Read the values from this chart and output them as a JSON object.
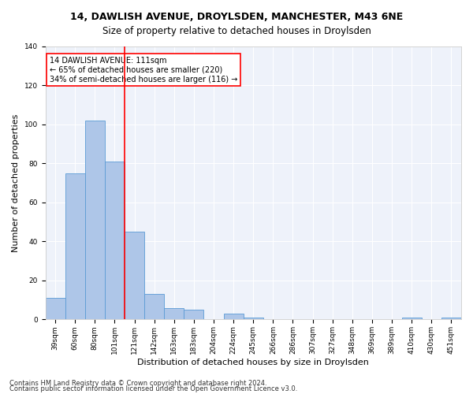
{
  "title": "14, DAWLISH AVENUE, DROYLSDEN, MANCHESTER, M43 6NE",
  "subtitle": "Size of property relative to detached houses in Droylsden",
  "xlabel": "Distribution of detached houses by size in Droylsden",
  "ylabel": "Number of detached properties",
  "categories": [
    "39sqm",
    "60sqm",
    "80sqm",
    "101sqm",
    "121sqm",
    "142sqm",
    "163sqm",
    "183sqm",
    "204sqm",
    "224sqm",
    "245sqm",
    "266sqm",
    "286sqm",
    "307sqm",
    "327sqm",
    "348sqm",
    "369sqm",
    "389sqm",
    "410sqm",
    "430sqm",
    "451sqm"
  ],
  "values": [
    11,
    75,
    102,
    81,
    45,
    13,
    6,
    5,
    0,
    3,
    1,
    0,
    0,
    0,
    0,
    0,
    0,
    0,
    1,
    0,
    1
  ],
  "bar_color": "#aec6e8",
  "bar_edge_color": "#5b9bd5",
  "annotation_box_text": "14 DAWLISH AVENUE: 111sqm\n← 65% of detached houses are smaller (220)\n34% of semi-detached houses are larger (116) →",
  "ylim": [
    0,
    140
  ],
  "yticks": [
    0,
    20,
    40,
    60,
    80,
    100,
    120,
    140
  ],
  "footnote1": "Contains HM Land Registry data © Crown copyright and database right 2024.",
  "footnote2": "Contains public sector information licensed under the Open Government Licence v3.0.",
  "background_color": "#eef2fa",
  "grid_color": "#ffffff",
  "title_fontsize": 9,
  "axis_label_fontsize": 8,
  "tick_fontsize": 6.5,
  "annotation_fontsize": 7,
  "footnote_fontsize": 6
}
